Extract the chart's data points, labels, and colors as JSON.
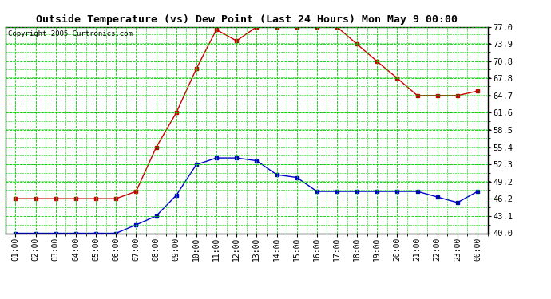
{
  "title": "Outside Temperature (vs) Dew Point (Last 24 Hours) Mon May 9 00:00",
  "copyright": "Copyright 2005 Curtronics.com",
  "x_labels": [
    "01:00",
    "02:00",
    "03:00",
    "04:00",
    "05:00",
    "06:00",
    "07:00",
    "08:00",
    "09:00",
    "10:00",
    "11:00",
    "12:00",
    "13:00",
    "14:00",
    "15:00",
    "16:00",
    "17:00",
    "18:00",
    "19:00",
    "20:00",
    "21:00",
    "22:00",
    "23:00",
    "00:00"
  ],
  "y_ticks": [
    40.0,
    43.1,
    46.2,
    49.2,
    52.3,
    55.4,
    58.5,
    61.6,
    64.7,
    67.8,
    70.8,
    73.9,
    77.0
  ],
  "ylim": [
    40.0,
    77.0
  ],
  "temp_color": "#cc0000",
  "dew_color": "#0000cc",
  "grid_color": "#00cc00",
  "bg_color": "#ffffff",
  "plot_bg": "#ffffff",
  "temperature": [
    46.2,
    46.2,
    46.2,
    46.2,
    46.2,
    46.2,
    47.5,
    55.4,
    61.6,
    69.5,
    76.5,
    74.5,
    77.0,
    77.0,
    77.0,
    77.0,
    77.0,
    73.9,
    70.8,
    67.8,
    64.7,
    64.7,
    64.7,
    65.5
  ],
  "dewpoint": [
    40.0,
    40.0,
    40.0,
    40.0,
    40.0,
    40.0,
    41.5,
    43.1,
    46.8,
    52.3,
    53.5,
    53.5,
    53.0,
    50.5,
    50.0,
    47.5,
    47.5,
    47.5,
    47.5,
    47.5,
    47.5,
    46.5,
    45.5,
    47.5
  ]
}
